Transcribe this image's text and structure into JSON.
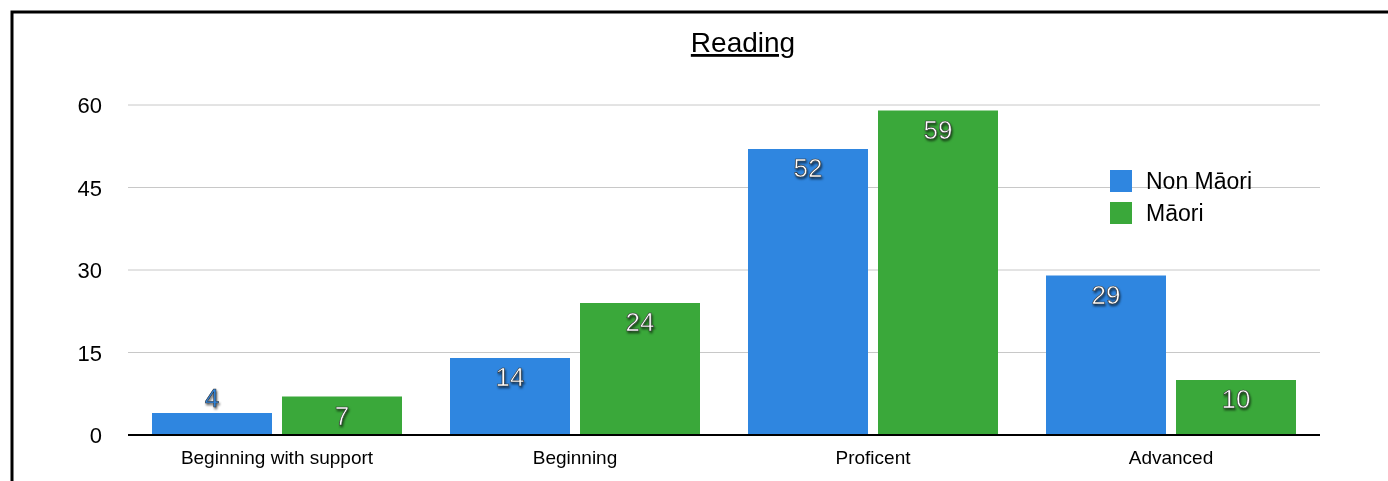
{
  "chart_data": {
    "type": "bar",
    "title": "Reading",
    "categories": [
      "Beginning with support",
      "Beginning",
      "Proficent",
      "Advanced"
    ],
    "series": [
      {
        "name": "Non Māori",
        "color": "#2f86e0",
        "values": [
          4,
          14,
          52,
          29
        ]
      },
      {
        "name": "Māori",
        "color": "#3aa83a",
        "values": [
          7,
          24,
          59,
          10
        ]
      }
    ],
    "ylim": [
      0,
      60
    ],
    "yticks": [
      0,
      15,
      30,
      45,
      60
    ],
    "grid": "y",
    "legend": "top right",
    "data_labels": true
  }
}
